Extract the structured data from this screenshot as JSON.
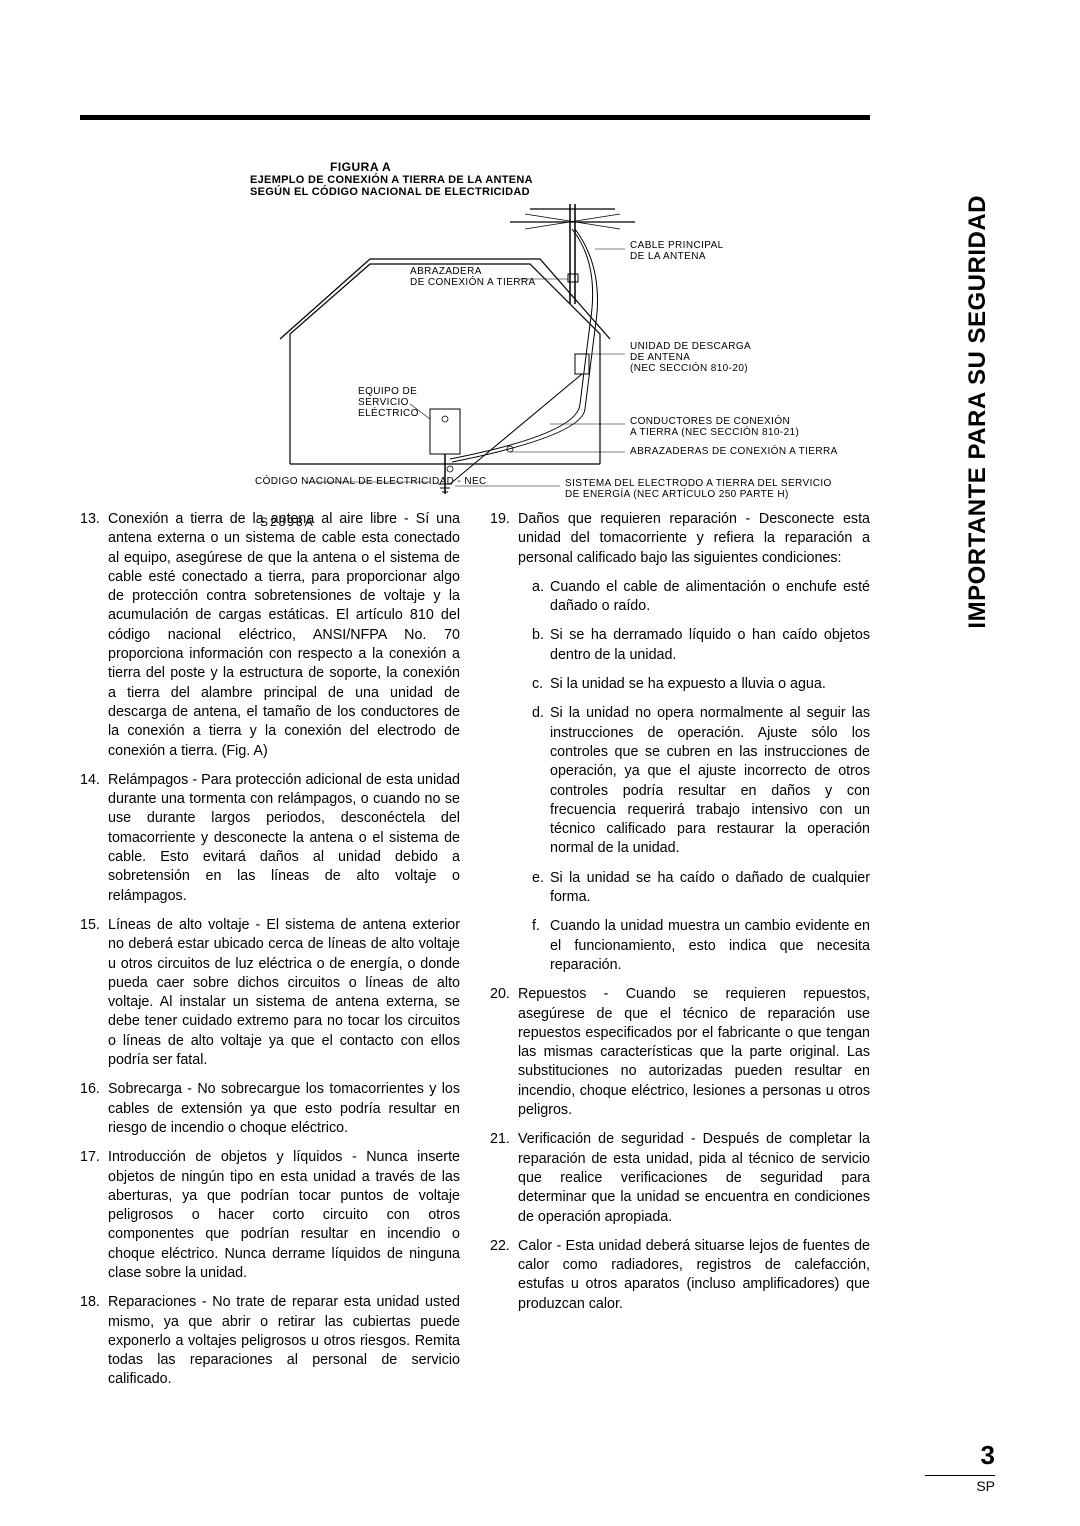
{
  "side_label": "IMPORTANTE PARA SU SEGURIDAD",
  "figure": {
    "title": "FIGURA A",
    "sub1": "EJEMPLO DE CONEXIÓN A TIERRA DE LA ANTENA",
    "sub2": "SEGÚN EL CÓDIGO NACIONAL DE ELECTRICIDAD",
    "code": "S2898A",
    "labels": {
      "cable": "CABLE PRINCIPAL\nDE LA ANTENA",
      "abrazadera": "ABRAZADERA\nDE CONEXIÓN A TIERRA",
      "unidad": "UNIDAD DE DESCARGA\nDE ANTENA\n(NEC SECCIÓN 810-20)",
      "equipo": "EQUIPO DE\nSERVICIO\nELÉCTRICO",
      "conductores": "CONDUCTORES DE CONEXIÓN\nA TIERRA (NEC SECCIÓN 810-21)",
      "abrazaderas2": "ABRAZADERAS DE CONEXIÓN A TIERRA",
      "nec": "CÓDIGO NACIONAL DE ELECTRICIDAD - NEC",
      "sistema": "SISTEMA DEL ELECTRODO A TIERRA DEL SERVICIO\nDE ENERGÍA (NEC ARTÍCULO 250 PARTE H)"
    }
  },
  "left_items": [
    {
      "n": "13.",
      "t": "Conexión a tierra de la antena al aire libre - Sí una antena externa o un sistema de cable esta conectado al equipo, asegúrese de que la antena o el sistema de cable esté conectado a tierra, para proporcionar algo de protección contra sobretensiones de voltaje y la acumulación de cargas estáticas. El artículo 810 del código nacional eléctrico, ANSI/NFPA No. 70 proporciona información con respecto a la conexión a tierra del poste y la estructura de soporte, la conexión a tierra del alambre principal de una unidad de descarga de antena, el tamaño de los conductores de la conexión a tierra y la conexión del electrodo de conexión a tierra. (Fig. A)"
    },
    {
      "n": "14.",
      "t": "Relámpagos - Para protección adicional de esta unidad durante una tormenta con relámpagos, o cuando no se use durante largos periodos, desconéctela del tomacorriente y desconecte la antena o el sistema de cable. Esto evitará daños al unidad debido a sobretensión en las líneas de alto voltaje o relámpagos."
    },
    {
      "n": "15.",
      "t": "Líneas de alto voltaje - El sistema de antena exterior no deberá estar ubicado cerca de líneas de alto voltaje u otros circuitos de luz eléctrica o de energía, o donde pueda caer sobre dichos circuitos o líneas de alto voltaje. Al instalar un sistema de antena externa, se debe tener cuidado extremo para no tocar los circuitos o líneas de alto voltaje ya que el contacto con ellos podría ser fatal."
    },
    {
      "n": "16.",
      "t": "Sobrecarga - No sobrecargue los tomacorrientes y los cables de extensión ya que esto podría resultar en riesgo de incendio o choque eléctrico."
    },
    {
      "n": "17.",
      "t": "Introducción de objetos y líquidos - Nunca inserte objetos de ningún tipo en esta unidad a través de las aberturas, ya que podrían tocar puntos de voltaje peligrosos o hacer corto circuito con otros componentes que podrían resultar en incendio o choque eléctrico. Nunca derrame líquidos de ninguna clase sobre la unidad."
    },
    {
      "n": "18.",
      "t": "Reparaciones - No trate de reparar esta unidad usted mismo, ya que abrir o retirar las cubiertas puede exponerlo a voltajes peligrosos u otros riesgos. Remita todas las reparaciones al personal de servicio calificado."
    }
  ],
  "right_items": [
    {
      "n": "19.",
      "t": "Daños que requieren reparación - Desconecte esta unidad del tomacorriente y refiera la reparación a personal calificado bajo las siguientes condiciones:",
      "subs": [
        {
          "l": "a.",
          "s": "Cuando el cable de alimentación o enchufe esté dañado o raído."
        },
        {
          "l": "b.",
          "s": "Si se ha derramado líquido o han caído objetos dentro de la unidad."
        },
        {
          "l": "c.",
          "s": "Si la unidad se ha expuesto a lluvia o agua."
        },
        {
          "l": "d.",
          "s": "Si la unidad no opera normalmente al seguir las instrucciones de operación. Ajuste sólo los controles que se cubren en las instrucciones de operación, ya que el ajuste incorrecto de otros controles podría resultar en daños y con frecuencia requerirá trabajo intensivo con un técnico calificado para restaurar la operación normal de la unidad."
        },
        {
          "l": "e.",
          "s": "Si la unidad se ha caído o dañado de cualquier forma."
        },
        {
          "l": "f.",
          "s": "Cuando la unidad muestra un cambio evidente en el funcionamiento, esto indica que necesita reparación."
        }
      ]
    },
    {
      "n": "20.",
      "t": "Repuestos - Cuando se requieren repuestos, asegúrese de que el técnico de reparación use repuestos especificados por el fabricante o que tengan las mismas características que la parte original. Las substituciones no autorizadas pueden resultar en incendio, choque eléctrico, lesiones a personas u otros peligros."
    },
    {
      "n": "21.",
      "t": "Verificación de seguridad - Después de completar la reparación de esta unidad, pida al técnico de servicio que realice verificaciones de seguridad para determinar que la unidad se encuentra en condiciones de operación apropiada."
    },
    {
      "n": "22.",
      "t": "Calor - Esta unidad deberá situarse lejos de fuentes de calor como radiadores, registros de calefacción, estufas u otros aparatos (incluso amplificadores) que produzcan calor."
    }
  ],
  "footer": {
    "page": "3",
    "lang": "SP"
  }
}
